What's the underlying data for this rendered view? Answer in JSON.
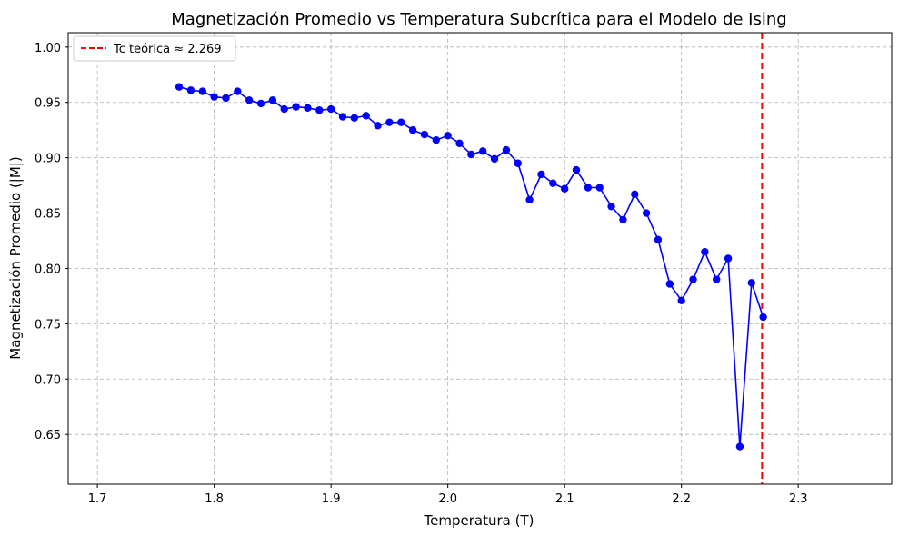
{
  "chart_data": {
    "type": "line",
    "title": "Magnetización Promedio vs Temperatura Subcrítica para el Modelo de Ising",
    "xlabel": "Temperatura (T)",
    "ylabel": "Magnetización Promedio (|M|)",
    "xlim": [
      1.675,
      2.38
    ],
    "ylim": [
      0.605,
      1.013
    ],
    "xticks": [
      1.7,
      1.8,
      1.9,
      2.0,
      2.1,
      2.2,
      2.3
    ],
    "xtick_labels": [
      "1.7",
      "1.8",
      "1.9",
      "2.0",
      "2.1",
      "2.2",
      "2.3"
    ],
    "yticks": [
      0.65,
      0.7,
      0.75,
      0.8,
      0.85,
      0.9,
      0.95,
      1.0
    ],
    "ytick_labels": [
      "0.65",
      "0.70",
      "0.75",
      "0.80",
      "0.85",
      "0.90",
      "0.95",
      "1.00"
    ],
    "grid": true,
    "legend_position": "top-left",
    "series": [
      {
        "color": "#0000ff",
        "marker": "circle",
        "x": [
          1.77,
          1.78,
          1.79,
          1.8,
          1.81,
          1.82,
          1.83,
          1.84,
          1.85,
          1.86,
          1.87,
          1.88,
          1.89,
          1.9,
          1.91,
          1.92,
          1.93,
          1.94,
          1.95,
          1.96,
          1.97,
          1.98,
          1.99,
          2.0,
          2.01,
          2.02,
          2.03,
          2.04,
          2.05,
          2.06,
          2.07,
          2.08,
          2.09,
          2.1,
          2.11,
          2.12,
          2.13,
          2.14,
          2.15,
          2.16,
          2.17,
          2.18,
          2.19,
          2.2,
          2.21,
          2.22,
          2.23,
          2.24,
          2.25,
          2.26,
          2.27
        ],
        "y": [
          0.964,
          0.961,
          0.96,
          0.955,
          0.954,
          0.96,
          0.952,
          0.949,
          0.952,
          0.944,
          0.946,
          0.945,
          0.943,
          0.944,
          0.937,
          0.936,
          0.938,
          0.929,
          0.932,
          0.932,
          0.925,
          0.921,
          0.916,
          0.92,
          0.913,
          0.903,
          0.906,
          0.899,
          0.907,
          0.895,
          0.862,
          0.885,
          0.877,
          0.872,
          0.889,
          0.873,
          0.873,
          0.856,
          0.844,
          0.867,
          0.85,
          0.826,
          0.786,
          0.771,
          0.79,
          0.815,
          0.79,
          0.809,
          0.639,
          0.787,
          0.756
        ]
      }
    ],
    "reference_line": {
      "name": "Tc teórica ≈ 2.269",
      "x": 2.269,
      "color": "#ff0000",
      "style": "dashed"
    }
  }
}
